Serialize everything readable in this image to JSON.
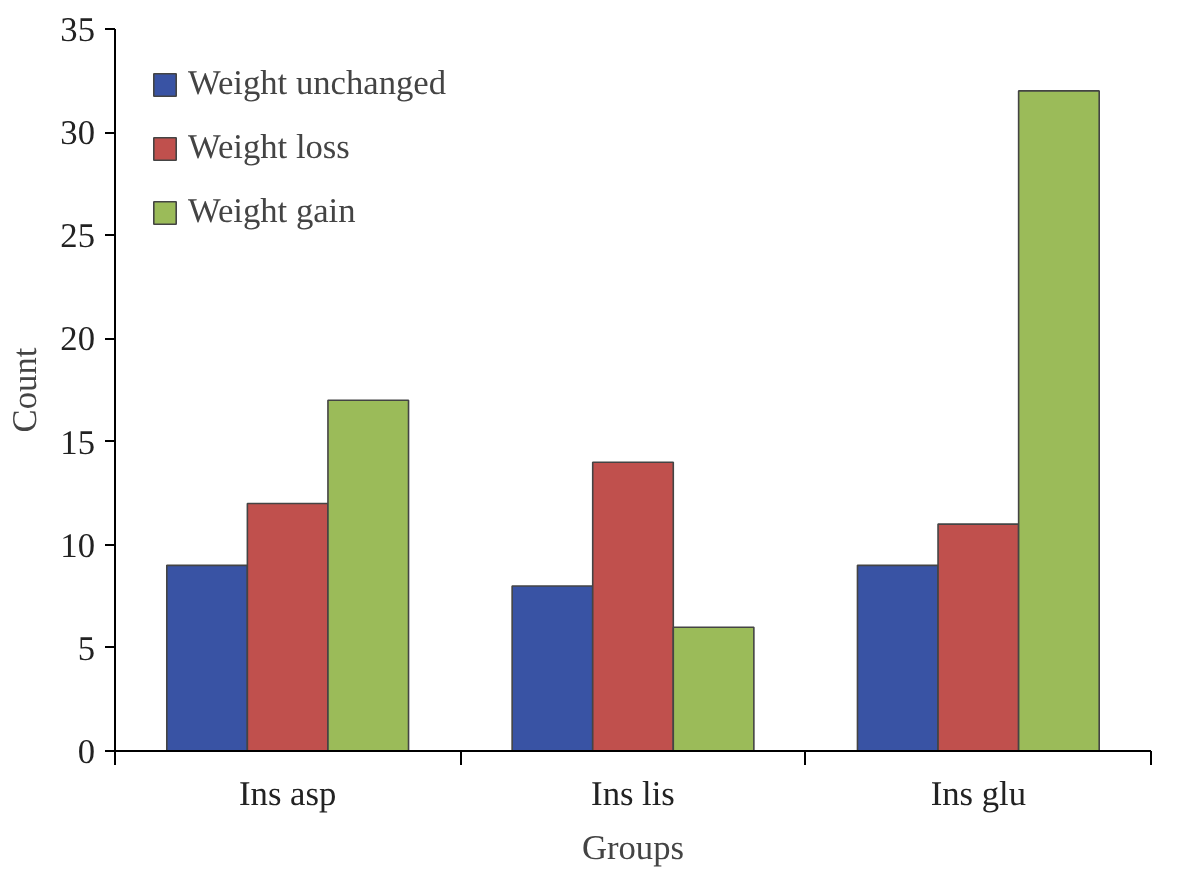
{
  "chart_data": {
    "type": "bar",
    "xlabel": "Groups",
    "ylabel": "Count",
    "categories": [
      "Ins asp",
      "Ins lis",
      "Ins glu"
    ],
    "series": [
      {
        "name": "Weight unchanged",
        "color": "#3953a4",
        "values": [
          9,
          8,
          9
        ]
      },
      {
        "name": "Weight loss",
        "color": "#c0504d",
        "values": [
          12,
          14,
          11
        ]
      },
      {
        "name": "Weight gain",
        "color": "#9bbb59",
        "values": [
          17,
          6,
          32
        ]
      }
    ],
    "ylim": [
      0,
      35
    ],
    "yticks": [
      0,
      5,
      10,
      15,
      20,
      25,
      30,
      35
    ],
    "grid": false,
    "legend": "top left"
  }
}
